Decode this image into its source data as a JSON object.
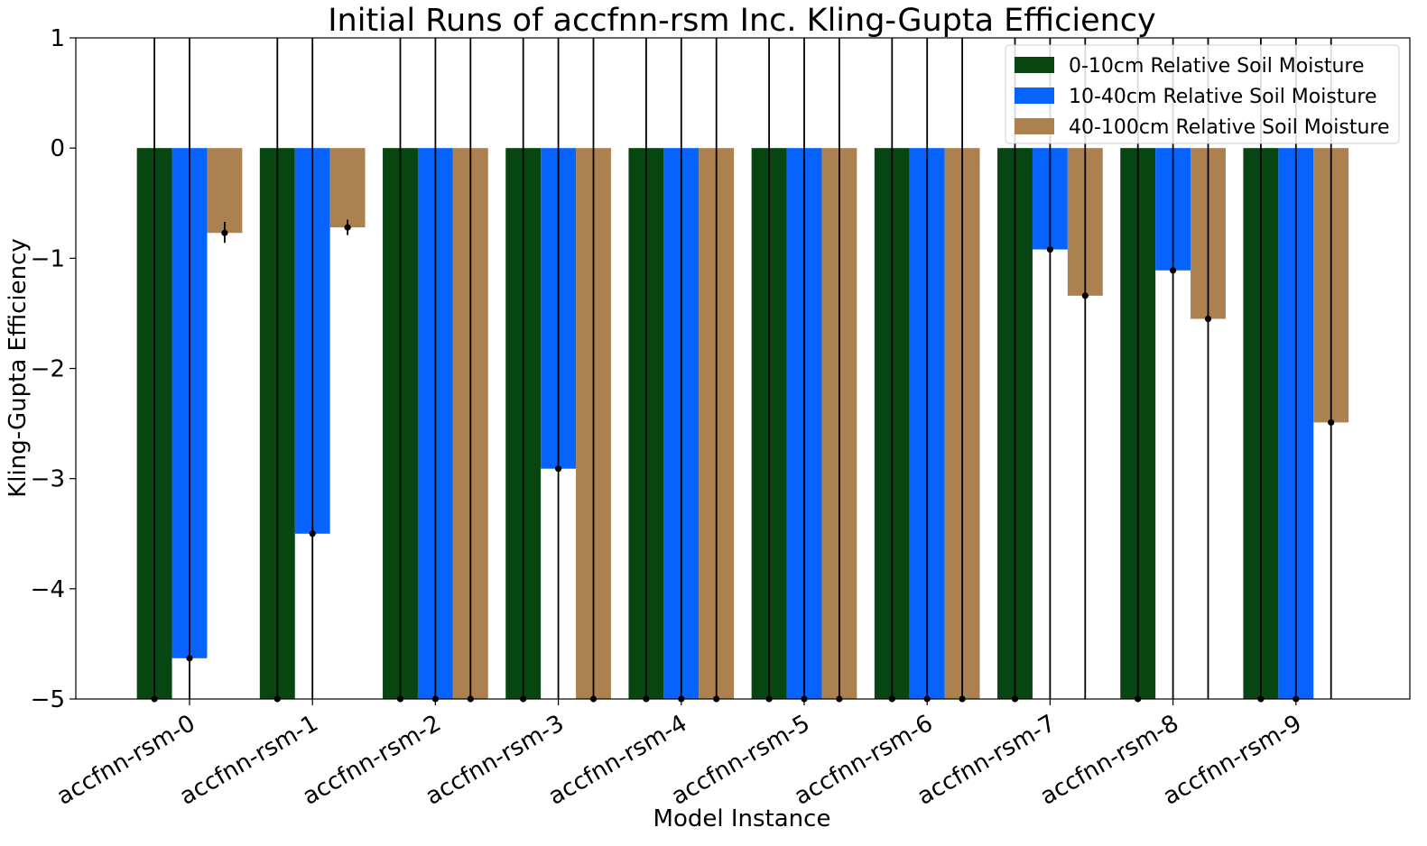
{
  "chart_data": {
    "type": "bar",
    "title": "Initial Runs of accfnn-rsm Inc. Kling-Gupta Efficiency",
    "xlabel": "Model Instance",
    "ylabel": "Kling-Gupta Efficiency",
    "ylim": [
      -5,
      1
    ],
    "yticks": [
      1,
      0,
      -1,
      -2,
      -3,
      -4,
      -5
    ],
    "ytick_labels": [
      "1",
      "0",
      "−1",
      "−2",
      "−3",
      "−4",
      "−5"
    ],
    "grid": false,
    "legend_position": "top-right",
    "categories": [
      "accfnn-rsm-0",
      "accfnn-rsm-1",
      "accfnn-rsm-2",
      "accfnn-rsm-3",
      "accfnn-rsm-4",
      "accfnn-rsm-5",
      "accfnn-rsm-6",
      "accfnn-rsm-7",
      "accfnn-rsm-8",
      "accfnn-rsm-9"
    ],
    "series": [
      {
        "name": "0-10cm Relative Soil Moisture",
        "color": "#074511",
        "values": [
          -5,
          -5,
          -5,
          -5,
          -5,
          -5,
          -5,
          -5,
          -5,
          -5
        ],
        "error_upper": [
          null,
          null,
          null,
          null,
          null,
          null,
          null,
          null,
          null,
          null
        ],
        "error_lower": [
          null,
          null,
          null,
          null,
          null,
          null,
          null,
          null,
          null,
          null
        ]
      },
      {
        "name": "10-40cm Relative Soil Moisture",
        "color": "#0663fd",
        "values": [
          -4.63,
          -3.5,
          -5,
          -2.91,
          -5,
          -5,
          -5,
          -0.92,
          -1.11,
          -5
        ],
        "error_upper": [
          null,
          null,
          null,
          null,
          null,
          null,
          null,
          null,
          null,
          null
        ],
        "error_lower": [
          null,
          null,
          null,
          null,
          null,
          null,
          null,
          null,
          null,
          null
        ]
      },
      {
        "name": "40-100cm Relative Soil Moisture",
        "color": "#ac8150",
        "values": [
          -0.77,
          -0.72,
          -5,
          -5,
          -5,
          -5,
          -5,
          -1.34,
          -1.55,
          -2.49
        ],
        "error_upper": [
          -0.67,
          -0.65,
          null,
          null,
          null,
          null,
          null,
          null,
          null,
          null
        ],
        "error_lower": [
          -0.86,
          -0.79,
          null,
          null,
          null,
          null,
          null,
          null,
          null,
          null
        ]
      }
    ]
  }
}
